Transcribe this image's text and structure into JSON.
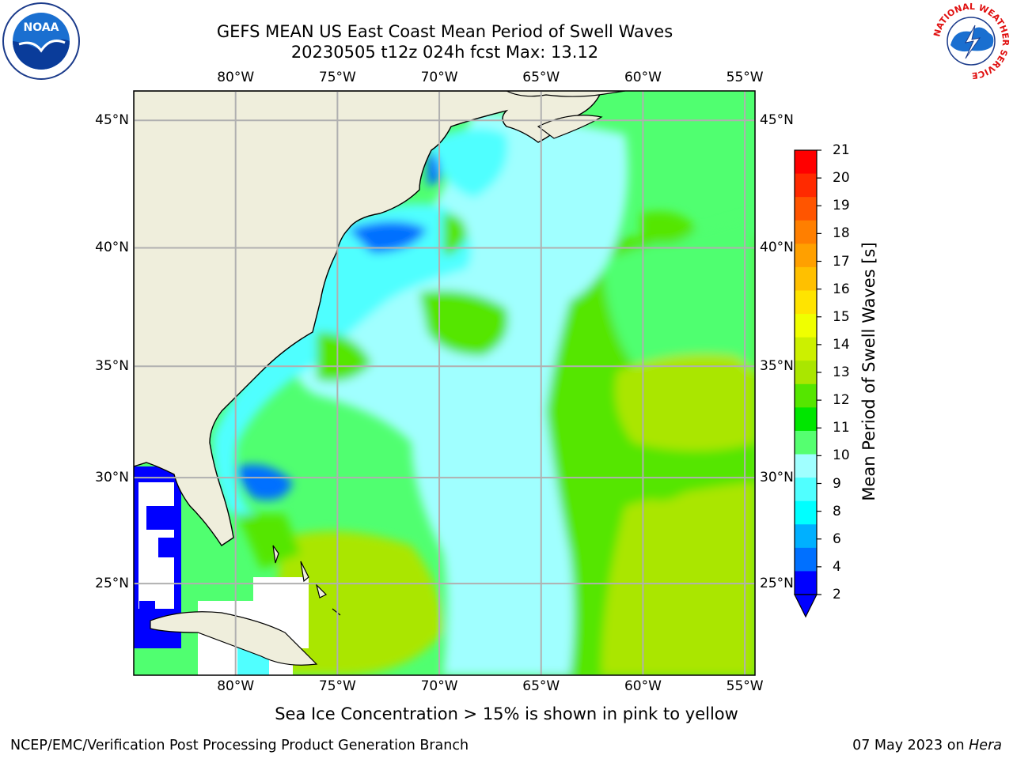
{
  "header": {
    "title_line1": "GEFS MEAN US East Coast Mean Period of Swell Waves",
    "title_line2": "20230505 t12z 024h fcst   Max: 13.12"
  },
  "map": {
    "lon_labels": [
      "80°W",
      "75°W",
      "70°W",
      "65°W",
      "60°W",
      "55°W"
    ],
    "lat_labels": [
      "45°N",
      "40°N",
      "35°N",
      "30°N",
      "25°N"
    ],
    "lon_range": [
      -85,
      -54.5
    ],
    "lat_range": [
      20.5,
      46.1
    ],
    "land_color": "#efeedc",
    "grid_color": "#b0b0b0"
  },
  "colorbar": {
    "label": "Mean Period of Swell Waves [s]",
    "ticks": [
      "21",
      "20",
      "19",
      "18",
      "17",
      "16",
      "15",
      "14",
      "13",
      "12",
      "11",
      "10",
      "9",
      "8",
      "6",
      "4",
      "2"
    ],
    "colors": [
      "#ff0000",
      "#ff2a00",
      "#ff5500",
      "#ff7f00",
      "#ffa000",
      "#ffc000",
      "#ffe400",
      "#f0ff00",
      "#ccf000",
      "#aae600",
      "#55e600",
      "#00e600",
      "#55ff70",
      "#a0ffff",
      "#50ffff",
      "#00ffff",
      "#00b0ff",
      "#0070ff",
      "#0000ff"
    ],
    "under_color": "#0000ff"
  },
  "footer": {
    "ice_note": "Sea Ice Concentration > 15% is shown in pink to yellow",
    "credit": "NCEP/EMC/Verification Post Processing Product Generation Branch",
    "date": "07 May 2023 on",
    "host": "Hera"
  },
  "logos": {
    "noaa_text": "NOAA",
    "nws_ring_text": "NATIONAL WEATHER SERVICE"
  }
}
